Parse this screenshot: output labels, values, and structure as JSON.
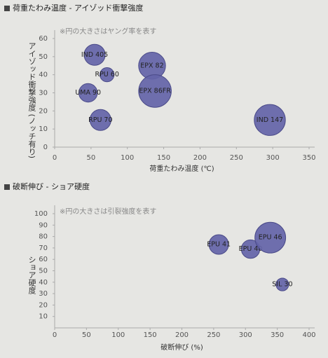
{
  "chart_data": [
    {
      "type": "bubble",
      "title": "荷重たわみ温度 - アイゾッド衝撃強度",
      "note": "※円の大きさはヤング率を表す",
      "xlabel": "荷重たわみ温度 (℃)",
      "ylabel": "アイゾッド衝撃強度 (ノッチ有り)",
      "labels": [
        "IND 405",
        "RPU 60",
        "EPX 82",
        "UMA 90",
        "EPX 86FR",
        "RPU 70",
        "IND 147"
      ],
      "x": [
        55,
        72,
        134,
        46,
        138,
        63,
        296
      ],
      "values": [
        51,
        40,
        45,
        30,
        31,
        15,
        15
      ],
      "sizes": [
        22,
        10,
        36,
        17,
        53,
        22,
        48
      ],
      "color": "#6464a8",
      "xlim": [
        0,
        350
      ],
      "xticks": [
        0,
        50,
        100,
        150,
        200,
        250,
        300,
        350
      ],
      "ylim": [
        0,
        60
      ],
      "yticks": [
        0,
        10,
        20,
        30,
        40,
        50,
        60
      ]
    },
    {
      "type": "bubble",
      "title": "破断伸び - ショア硬度",
      "note": "※円の大きさは引裂強度を表す",
      "xlabel": "破断伸び (%)",
      "ylabel": "ショア硬度",
      "labels": [
        "EPU 41",
        "EPU 40",
        "EPU 46",
        "SIL 30"
      ],
      "x": [
        258,
        308,
        339,
        358
      ],
      "values": [
        73,
        69,
        79,
        38
      ],
      "sizes": [
        19,
        17,
        47,
        8
      ],
      "color": "#6464a8",
      "xlim": [
        0,
        400
      ],
      "xticks": [
        0,
        50,
        100,
        150,
        200,
        250,
        300,
        350,
        400
      ],
      "ylim": [
        0,
        100
      ],
      "yticks": [
        10,
        20,
        30,
        40,
        50,
        60,
        70,
        80,
        90,
        100
      ]
    }
  ]
}
